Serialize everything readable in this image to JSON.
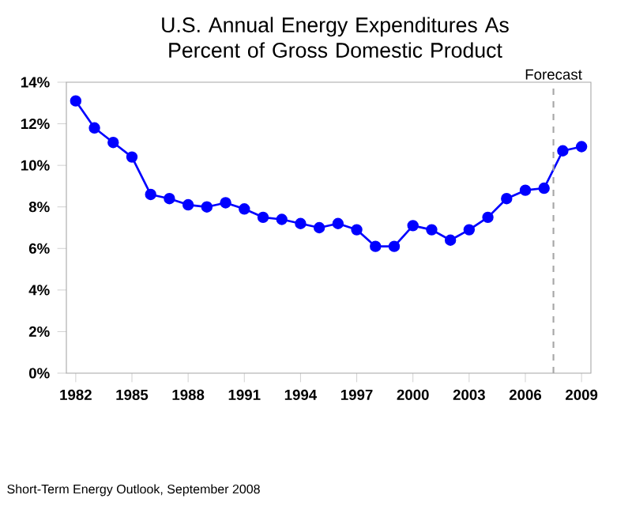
{
  "chart_data": {
    "type": "line",
    "title": "U.S. Annual Energy Expenditures As Percent of Gross Domestic Product",
    "categories": [
      "1982",
      null,
      null,
      "1985",
      null,
      null,
      "1988",
      null,
      null,
      "1991",
      null,
      null,
      "1994",
      null,
      null,
      "1997",
      null,
      null,
      "2000",
      null,
      null,
      "2003",
      null,
      null,
      "2006",
      null,
      null,
      "2009"
    ],
    "series": [
      {
        "color": "#0000ff",
        "values": [
          13.1,
          11.8,
          11.1,
          10.4,
          8.6,
          8.4,
          8.1,
          8.0,
          8.2,
          7.9,
          7.5,
          7.4,
          7.2,
          7.0,
          7.2,
          6.9,
          6.1,
          6.1,
          7.1,
          6.9,
          6.4,
          6.9,
          7.5,
          8.4,
          8.8,
          8.9,
          10.7,
          10.9
        ]
      }
    ],
    "ylim": [
      0,
      14
    ],
    "yticks": [
      {
        "value": 0,
        "label": "0%"
      },
      {
        "value": 2,
        "label": "2%"
      },
      {
        "value": 4,
        "label": "4%"
      },
      {
        "value": 6,
        "label": "6%"
      },
      {
        "value": 8,
        "label": "8%"
      },
      {
        "value": 10,
        "label": "10%"
      },
      {
        "value": 12,
        "label": "12%"
      },
      {
        "value": 14,
        "label": "14%"
      }
    ],
    "marker": "circle",
    "line_style": "solid",
    "grid": false,
    "annotations": [
      "Short-Term Energy Outlook, September 2008",
      "Forecast"
    ]
  }
}
